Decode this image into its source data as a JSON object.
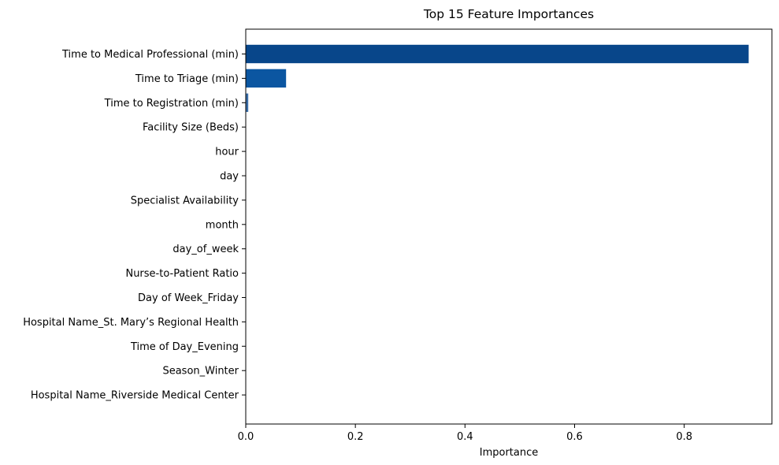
{
  "chart_data": {
    "type": "bar",
    "orientation": "horizontal",
    "title": "Top 15 Feature Importances",
    "xlabel": "Importance",
    "ylabel": "",
    "xlim": [
      0,
      0.96
    ],
    "xticks": [
      "0.0",
      "0.2",
      "0.4",
      "0.6",
      "0.8"
    ],
    "xtick_values": [
      0.0,
      0.2,
      0.4,
      0.6,
      0.8
    ],
    "grid": false,
    "legend": "none",
    "categories": [
      "Time to Medical Professional (min)",
      "Time to Triage (min)",
      "Time to Registration (min)",
      "Facility Size (Beds)",
      "hour",
      "day",
      "Specialist Availability",
      "month",
      "day_of_week",
      "Nurse-to-Patient Ratio",
      "Day of Week_Friday",
      "Hospital Name_St. Mary’s Regional Health",
      "Time of Day_Evening",
      "Season_Winter",
      "Hospital Name_Riverside Medical Center"
    ],
    "values": [
      0.918,
      0.074,
      0.005,
      0.0004,
      0.0003,
      0.0003,
      0.0002,
      0.0002,
      0.0002,
      0.0002,
      0.0001,
      0.0001,
      0.0001,
      0.0001,
      0.0001
    ],
    "colors": [
      "#08468a",
      "#0b56a1",
      "#3a6ea8",
      "#6a8fbf",
      "#7f9fca",
      "#8aa8cf",
      "#97b2d5",
      "#a2bbda",
      "#adc3df",
      "#b7cae3",
      "#c0d1e7",
      "#c9d8eb",
      "#d2deef",
      "#dae4f2",
      "#e2eaf6"
    ]
  }
}
